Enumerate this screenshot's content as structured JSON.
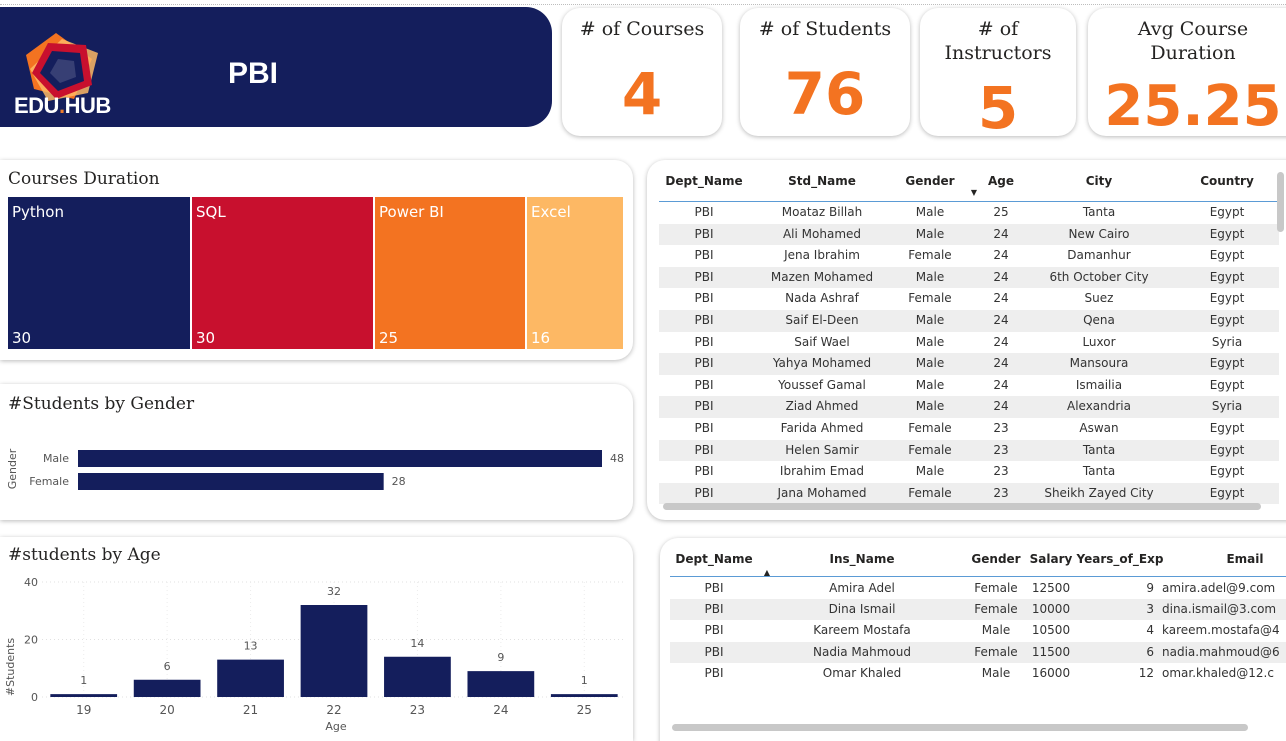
{
  "header": {
    "logo_text_main": "EDU",
    "logo_text_dot": ".",
    "logo_text_end": "HUB",
    "title": "PBI"
  },
  "colors": {
    "navy": "#141e5c",
    "crimson": "#c8102e",
    "orange": "#f37321",
    "peach": "#fdb864"
  },
  "kpis": [
    {
      "label_line1": "# of Courses",
      "label_line2": "",
      "value": "4"
    },
    {
      "label_line1": "# of Students",
      "label_line2": "",
      "value": "76"
    },
    {
      "label_line1": "# of",
      "label_line2": "Instructors",
      "value": "5"
    },
    {
      "label_line1": "Avg Course",
      "label_line2": "Duration",
      "value": "25.25"
    }
  ],
  "courses_duration": {
    "title": "Courses Duration",
    "chart_data": {
      "type": "treemap",
      "categories": [
        "Python",
        "SQL",
        "Power BI",
        "Excel"
      ],
      "values": [
        30,
        30,
        25,
        16
      ]
    }
  },
  "gender_chart": {
    "title": "#Students by Gender",
    "chart_data": {
      "type": "bar",
      "orientation": "horizontal",
      "categories": [
        "Male",
        "Female"
      ],
      "values": [
        48,
        28
      ],
      "ylabel": "Gender",
      "xlim": [
        0,
        48
      ]
    }
  },
  "age_chart": {
    "title": "#students by Age",
    "chart_data": {
      "type": "bar",
      "categories": [
        "19",
        "20",
        "21",
        "22",
        "23",
        "24",
        "25"
      ],
      "values": [
        1,
        6,
        13,
        32,
        14,
        9,
        1
      ],
      "xlabel": "Age",
      "ylabel": "#Students",
      "ylim": [
        0,
        40
      ],
      "yticks": [
        "0",
        "20",
        "40"
      ],
      "grid": true
    }
  },
  "students_table": {
    "columns": [
      "Dept_Name",
      "Std_Name",
      "Gender",
      "Age",
      "City",
      "Country"
    ],
    "rows": [
      [
        "PBI",
        "Moataz Billah",
        "Male",
        "25",
        "Tanta",
        "Egypt"
      ],
      [
        "PBI",
        "Ali Mohamed",
        "Male",
        "24",
        "New Cairo",
        "Egypt"
      ],
      [
        "PBI",
        "Jena Ibrahim",
        "Female",
        "24",
        "Damanhur",
        "Egypt"
      ],
      [
        "PBI",
        "Mazen Mohamed",
        "Male",
        "24",
        "6th October City",
        "Egypt"
      ],
      [
        "PBI",
        "Nada Ashraf",
        "Female",
        "24",
        "Suez",
        "Egypt"
      ],
      [
        "PBI",
        "Saif El-Deen",
        "Male",
        "24",
        "Qena",
        "Egypt"
      ],
      [
        "PBI",
        "Saif Wael",
        "Male",
        "24",
        "Luxor",
        "Syria"
      ],
      [
        "PBI",
        "Yahya Mohamed",
        "Male",
        "24",
        "Mansoura",
        "Egypt"
      ],
      [
        "PBI",
        "Youssef Gamal",
        "Male",
        "24",
        "Ismailia",
        "Egypt"
      ],
      [
        "PBI",
        "Ziad Ahmed",
        "Male",
        "24",
        "Alexandria",
        "Syria"
      ],
      [
        "PBI",
        "Farida Ahmed",
        "Female",
        "23",
        "Aswan",
        "Egypt"
      ],
      [
        "PBI",
        "Helen Samir",
        "Female",
        "23",
        "Tanta",
        "Egypt"
      ],
      [
        "PBI",
        "Ibrahim Emad",
        "Male",
        "23",
        "Tanta",
        "Egypt"
      ],
      [
        "PBI",
        "Jana Mohamed",
        "Female",
        "23",
        "Sheikh Zayed City",
        "Egypt"
      ]
    ]
  },
  "instructors_table": {
    "columns": [
      "Dept_Name",
      "Ins_Name",
      "Gender",
      "Salary",
      "Years_of_Exp",
      "Email"
    ],
    "rows": [
      [
        "PBI",
        "Amira Adel",
        "Female",
        "12500",
        "9",
        "amira.adel@9.com"
      ],
      [
        "PBI",
        "Dina Ismail",
        "Female",
        "10000",
        "3",
        "dina.ismail@3.com"
      ],
      [
        "PBI",
        "Kareem Mostafa",
        "Male",
        "10500",
        "4",
        "kareem.mostafa@4"
      ],
      [
        "PBI",
        "Nadia Mahmoud",
        "Female",
        "11500",
        "6",
        "nadia.mahmoud@6"
      ],
      [
        "PBI",
        "Omar Khaled",
        "Male",
        "16000",
        "12",
        "omar.khaled@12.c"
      ]
    ]
  }
}
